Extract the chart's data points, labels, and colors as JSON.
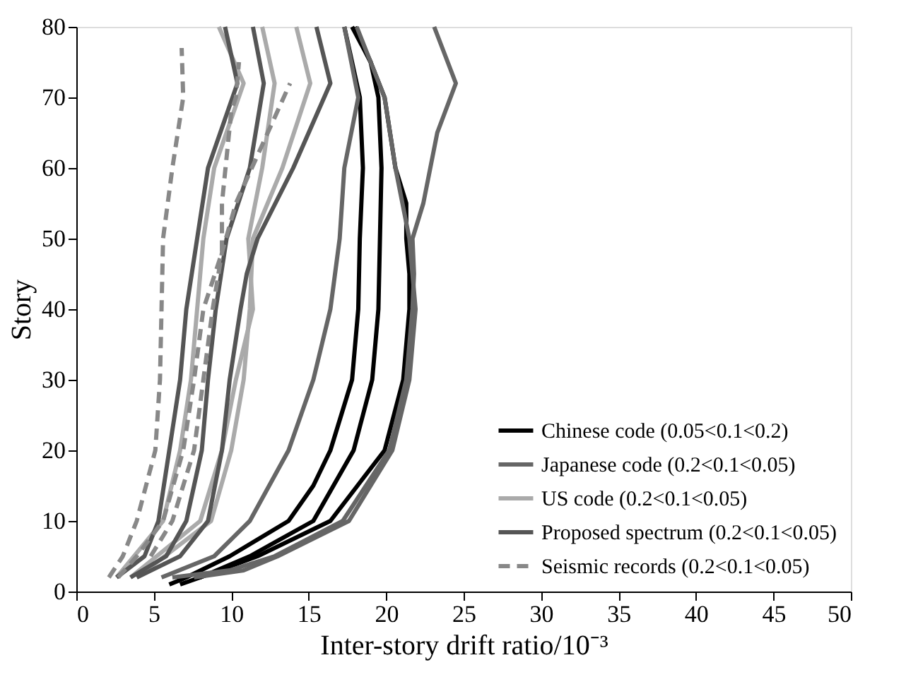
{
  "chart_data": {
    "type": "line",
    "xlabel": "Inter-story drift ratio/10⁻³",
    "ylabel": "Story",
    "xlim": [
      0,
      50
    ],
    "ylim": [
      0,
      80
    ],
    "xticks": [
      0,
      5,
      10,
      15,
      20,
      25,
      30,
      35,
      40,
      45,
      50
    ],
    "yticks": [
      0,
      10,
      20,
      30,
      40,
      50,
      60,
      70,
      80
    ],
    "grid": false,
    "legend": "bottom right",
    "marker": "none",
    "line_style": "solid",
    "series": [
      {
        "name": "Chinese code (0.05<0.1<0.2)",
        "color": "#000000",
        "x": [
          6,
          7.1,
          9.9,
          13.7,
          15.3,
          16.4,
          17.8,
          18.2,
          18.3,
          18.5,
          18.3,
          17.3
        ],
        "values": [
          1,
          2,
          5,
          10,
          15,
          20,
          30,
          40,
          50,
          60,
          70,
          80
        ]
      },
      {
        "color": "#000000",
        "x": [
          6.7,
          8,
          11.2,
          15.3,
          17.9,
          19.1,
          19.5,
          19.6,
          19.7,
          19.5,
          19,
          18
        ],
        "values": [
          1,
          2,
          5,
          10,
          20,
          30,
          40,
          50,
          60,
          70,
          75,
          80
        ]
      },
      {
        "color": "#000000",
        "x": [
          8,
          11.7,
          16.4,
          19.9,
          21.1,
          21.5,
          21.5,
          21.3,
          21.3,
          20.6,
          19.9,
          19,
          17.8
        ],
        "values": [
          2,
          5,
          10,
          20,
          30,
          40,
          45,
          50,
          55,
          60,
          70,
          75,
          80
        ]
      },
      {
        "name": "Japanese code (0.2<0.1<0.05)",
        "color": "#666666",
        "x": [
          6.2,
          9.9,
          12.8,
          17.2,
          20.2,
          21.3,
          21.7,
          21.8,
          21.7,
          22.4,
          23.3,
          24.5,
          23.1
        ],
        "values": [
          2,
          3,
          5,
          10,
          20,
          30,
          40,
          45,
          50,
          55,
          65,
          72,
          80
        ]
      },
      {
        "color": "#666666",
        "x": [
          5.5,
          8.9,
          11.2,
          13.7,
          15.3,
          16.4,
          17,
          17.3,
          18.2,
          17.3
        ],
        "values": [
          2,
          5,
          10,
          20,
          30,
          40,
          50,
          60,
          70,
          80
        ]
      },
      {
        "color": "#666666",
        "x": [
          7.6,
          10.8,
          13,
          17.6,
          20.4,
          21.5,
          21.9,
          21.5,
          20.6,
          19.9,
          18.1
        ],
        "values": [
          2,
          3,
          5,
          10,
          20,
          30,
          40,
          50,
          60,
          70,
          80
        ]
      },
      {
        "name": "US code (0.2<0.1<0.05)",
        "color": "#aaaaaa",
        "x": [
          2.6,
          5.6,
          6.7,
          7.4,
          7.8,
          8.2,
          8.9,
          10.8,
          9.2
        ],
        "values": [
          2,
          10,
          20,
          30,
          40,
          50,
          60,
          72,
          80
        ]
      },
      {
        "color": "#aaaaaa",
        "x": [
          3.5,
          8,
          9.4,
          10.3,
          11.4,
          11.1,
          12,
          12.8,
          12
        ],
        "values": [
          2,
          10,
          20,
          30,
          40,
          50,
          60,
          72,
          80
        ]
      },
      {
        "color": "#aaaaaa",
        "x": [
          3.9,
          8.7,
          10,
          10.8,
          11.2,
          11.4,
          13.3,
          15.1,
          14.2
        ],
        "values": [
          2,
          10,
          20,
          30,
          40,
          50,
          60,
          72,
          80
        ]
      },
      {
        "name": "Proposed spectrum (0.2<0.1<0.05)",
        "color": "#555555",
        "x": [
          2.6,
          4.4,
          5.3,
          6,
          6.7,
          7.1,
          7.8,
          8.5,
          10.4,
          9.6
        ],
        "values": [
          2,
          5,
          10,
          20,
          30,
          40,
          50,
          60,
          72,
          80
        ]
      },
      {
        "color": "#555555",
        "x": [
          3.5,
          5.8,
          7.1,
          8.1,
          8.5,
          9,
          9.7,
          11.2,
          12.1,
          11.4
        ],
        "values": [
          2,
          5,
          10,
          20,
          30,
          40,
          50,
          60,
          72,
          80
        ]
      },
      {
        "color": "#555555",
        "x": [
          3.9,
          6.7,
          8.5,
          9.4,
          9.9,
          10.6,
          11,
          11.7,
          14,
          16.4,
          15.5
        ],
        "values": [
          2,
          5,
          10,
          20,
          30,
          40,
          45,
          50,
          60,
          72,
          80
        ]
      },
      {
        "name": "Seismic records (0.2<0.1<0.05)",
        "color": "#888888",
        "line_style": "dashed",
        "x": [
          2.1,
          3,
          3.9,
          5.1,
          5.4,
          5.5,
          5.6,
          6.2,
          6.9,
          6.8
        ],
        "values": [
          2,
          5,
          10,
          20,
          30,
          40,
          50,
          60,
          70,
          77
        ]
      },
      {
        "color": "#888888",
        "line_style": "dashed",
        "x": [
          4.8,
          6.2,
          7.6,
          8.2,
          8.8,
          9.4,
          10.3,
          13.8
        ],
        "values": [
          5,
          10,
          20,
          30,
          40,
          48,
          55,
          72
        ]
      },
      {
        "color": "#888888",
        "line_style": "dashed",
        "x": [
          2.7,
          3.9,
          5.6,
          6.9,
          7.6,
          8.2,
          9.4,
          9.4,
          10,
          10.3,
          10.5
        ],
        "values": [
          2,
          5,
          10,
          20,
          30,
          40,
          48,
          55,
          68,
          70,
          75
        ]
      }
    ]
  }
}
